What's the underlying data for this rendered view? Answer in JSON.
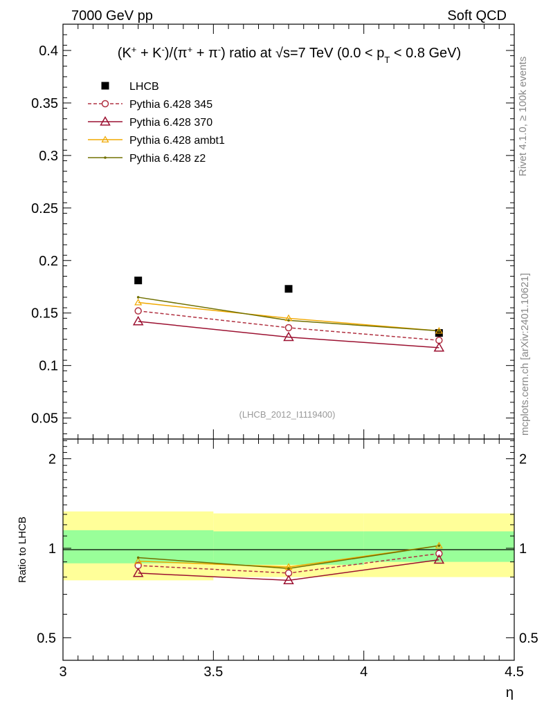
{
  "header": {
    "left_label": "7000 GeV pp",
    "right_label": "Soft QCD"
  },
  "side_labels": {
    "rivet": "Rivet 4.1.0, ≥ 100k events",
    "mcplots": "mcplots.cern.ch [arXiv:2401.10621]"
  },
  "analysis_tag": "(LHCB_2012_I1119400)",
  "colors": {
    "data": "#000000",
    "p345": "#b03040",
    "p370": "#9b1030",
    "ambt1": "#f0a800",
    "z2": "#707000",
    "band_inner": "#99ff99",
    "band_outer": "#ffff99"
  },
  "chart_data": [
    {
      "type": "scatter",
      "panel": "main",
      "title": "(K⁺ + K⁻)/(π⁺ + π⁻) ratio at √s=7 TeV (0.0 < p_T < 0.8 GeV)",
      "xlabel": "η",
      "ylabel": "",
      "xlim": [
        3.0,
        4.5
      ],
      "ylim": [
        0.03,
        0.425
      ],
      "yticks": [
        "0.05",
        "0.1",
        "0.15",
        "0.2",
        "0.25",
        "0.3",
        "0.35",
        "0.4"
      ],
      "ytick_values": [
        0.05,
        0.1,
        0.15,
        0.2,
        0.25,
        0.3,
        0.35,
        0.4
      ],
      "x": [
        3.25,
        3.75,
        4.25
      ],
      "series": [
        {
          "key": "data",
          "name": "LHCB",
          "marker": "square",
          "values": [
            0.181,
            0.173,
            0.131
          ]
        },
        {
          "key": "p345",
          "name": "Pythia 6.428 345",
          "marker": "circle",
          "dashed": true,
          "values": [
            0.152,
            0.136,
            0.124
          ]
        },
        {
          "key": "p370",
          "name": "Pythia 6.428 370",
          "marker": "triangle",
          "values": [
            0.142,
            0.127,
            0.117
          ]
        },
        {
          "key": "ambt1",
          "name": "Pythia 6.428 ambt1",
          "marker": "small-triangle",
          "values": [
            0.16,
            0.145,
            0.133
          ]
        },
        {
          "key": "z2",
          "name": "Pythia 6.428 z2",
          "marker": "dot",
          "values": [
            0.165,
            0.143,
            0.133
          ]
        }
      ]
    },
    {
      "type": "line",
      "panel": "ratio",
      "ylabel": "Ratio to LHCB",
      "xlabel": "η",
      "xlim": [
        3.0,
        4.5
      ],
      "ylim": [
        0.42,
        2.33
      ],
      "yticks": [
        "0.5",
        "1",
        "2"
      ],
      "ytick_values": [
        0.5,
        1,
        2
      ],
      "xticks": [
        "3",
        "3.5",
        "4",
        "4.5"
      ],
      "xtick_values": [
        3.0,
        3.5,
        4.0,
        4.5
      ],
      "x": [
        3.25,
        3.75,
        4.25
      ],
      "bands": {
        "edges": [
          3.0,
          3.5,
          4.0,
          4.5
        ],
        "inner": [
          [
            0.89,
            1.15
          ],
          [
            0.88,
            1.14
          ],
          [
            0.9,
            1.14
          ]
        ],
        "outer": [
          [
            0.78,
            1.33
          ],
          [
            0.8,
            1.31
          ],
          [
            0.8,
            1.31
          ]
        ]
      },
      "series": [
        {
          "key": "p345",
          "name": "Pythia 6.428 345",
          "values": [
            0.875,
            0.825,
            0.96
          ]
        },
        {
          "key": "p370",
          "name": "Pythia 6.428 370",
          "values": [
            0.825,
            0.78,
            0.915
          ]
        },
        {
          "key": "ambt1",
          "name": "Pythia 6.428 ambt1",
          "values": [
            0.905,
            0.865,
            1.02
          ]
        },
        {
          "key": "z2",
          "name": "Pythia 6.428 z2",
          "values": [
            0.93,
            0.855,
            1.02
          ]
        }
      ]
    }
  ]
}
